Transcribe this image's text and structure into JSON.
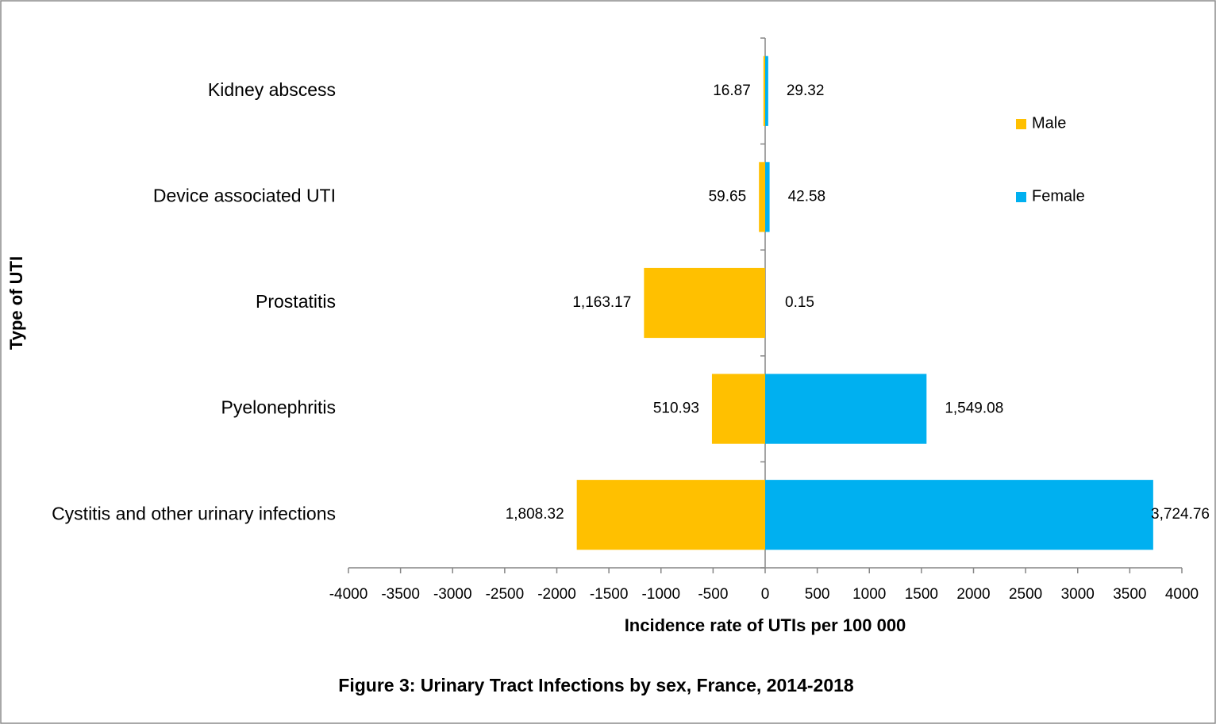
{
  "chart_data": {
    "type": "bar",
    "orientation": "horizontal",
    "title": "Figure 3: Urinary Tract Infections by sex, France, 2014-2018",
    "x_label": "Incidence rate of UTIs per 100 000",
    "y_label": "Type of UTI",
    "categories": [
      "Kidney abscess",
      "Device associated UTI",
      "Prostatitis",
      "Pyelonephritis",
      "Cystitis and other urinary infections"
    ],
    "series": [
      {
        "name": "Male",
        "color": "#FFC000",
        "values": [
          -16.87,
          -59.65,
          -1163.17,
          -510.93,
          -1808.32
        ],
        "value_labels": [
          "16.87",
          "59.65",
          "1,163.17",
          "510.93",
          "1,808.32"
        ]
      },
      {
        "name": "Female",
        "color": "#00B0F0",
        "values": [
          29.32,
          42.58,
          0.15,
          1549.08,
          3724.76
        ],
        "value_labels": [
          "29.32",
          "42.58",
          "0.15",
          "1,549.08",
          "3,724.76"
        ]
      }
    ],
    "xlim": [
      -4000,
      4000
    ],
    "xticks": [
      -4000,
      -3500,
      -3000,
      -2500,
      -2000,
      -1500,
      -1000,
      -500,
      0,
      500,
      1000,
      1500,
      2000,
      2500,
      3000,
      3500,
      4000
    ],
    "grid": false,
    "legend": "right"
  }
}
